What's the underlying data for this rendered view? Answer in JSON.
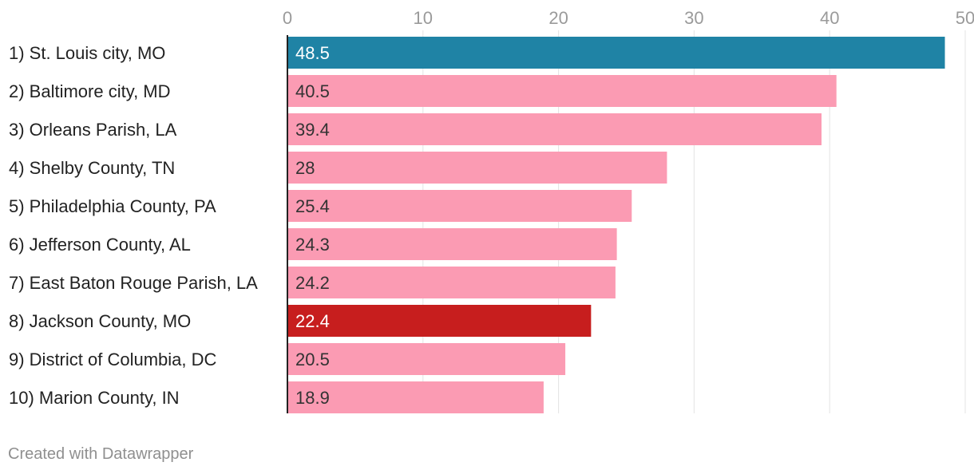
{
  "chart_data": {
    "type": "bar",
    "orientation": "horizontal",
    "title": "",
    "xlabel": "",
    "ylabel": "",
    "xlim": [
      0,
      50
    ],
    "ticks": [
      0,
      10,
      20,
      30,
      40,
      50
    ],
    "grid": true,
    "categories": [
      "1) St. Louis city, MO",
      "2) Baltimore city, MD",
      "3) Orleans Parish, LA",
      "4) Shelby County, TN",
      "5) Philadelphia County, PA",
      "6) Jefferson County, AL",
      "7) East Baton Rouge Parish, LA",
      "8) Jackson County, MO",
      "9) District of Columbia, DC",
      "10) Marion County, IN"
    ],
    "values": [
      48.5,
      40.5,
      39.4,
      28,
      25.4,
      24.3,
      24.2,
      22.4,
      20.5,
      18.9
    ],
    "value_labels": [
      "48.5",
      "40.5",
      "39.4",
      "28",
      "25.4",
      "24.3",
      "24.2",
      "22.4",
      "20.5",
      "18.9"
    ],
    "bar_colors": [
      "#1f83a5",
      "#fb9bb3",
      "#fb9bb3",
      "#fb9bb3",
      "#fb9bb3",
      "#fb9bb3",
      "#fb9bb3",
      "#c71e1e",
      "#fb9bb3",
      "#fb9bb3"
    ],
    "value_label_colors": [
      "#ffffff",
      "#333333",
      "#333333",
      "#333333",
      "#333333",
      "#333333",
      "#333333",
      "#ffffff",
      "#333333",
      "#333333"
    ]
  },
  "footer": {
    "credit": "Created with Datawrapper"
  }
}
